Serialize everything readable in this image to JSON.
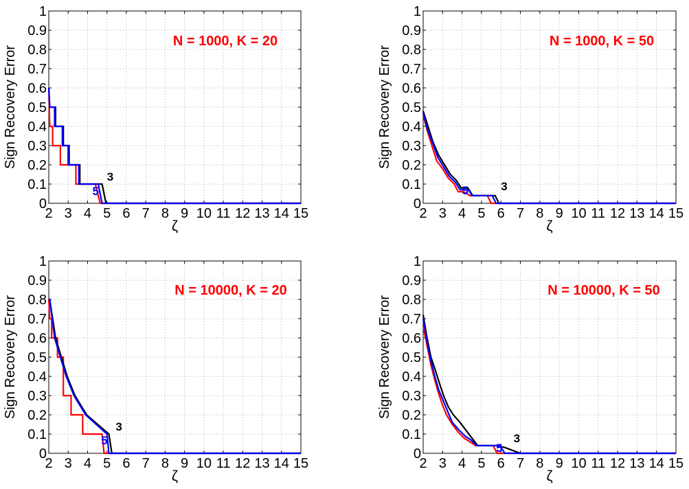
{
  "figure": {
    "colors": {
      "red": "#ff0000",
      "blue": "#0000ff",
      "black": "#000000",
      "grid": "#9a9a9a"
    }
  },
  "chart_data": [
    {
      "type": "line",
      "title": "N = 1000, K = 20",
      "xlabel": "ζ",
      "ylabel": "Sign Recovery Error",
      "xlim": [
        2,
        15
      ],
      "ylim": [
        0,
        1
      ],
      "xticks": [
        2,
        3,
        4,
        5,
        6,
        7,
        8,
        9,
        10,
        11,
        12,
        13,
        14,
        15
      ],
      "yticks": [
        0,
        0.1,
        0.2,
        0.3,
        0.4,
        0.5,
        0.6,
        0.7,
        0.8,
        0.9,
        1
      ],
      "grid": true,
      "annotations": [
        {
          "text": "3",
          "x": 5.0,
          "y": 0.11,
          "color": "black"
        },
        {
          "text": "5",
          "x": 4.25,
          "y": 0.035,
          "color": "blue"
        }
      ],
      "series": [
        {
          "color": "red",
          "x": [
            2,
            2.05,
            2.2,
            2.2,
            2.6,
            2.6,
            2.85,
            2.85,
            3.4,
            3.4,
            4.4,
            4.65,
            15
          ],
          "y": [
            0.6,
            0.4,
            0.4,
            0.3,
            0.3,
            0.2,
            0.2,
            0.2,
            0.2,
            0.1,
            0.1,
            0,
            0
          ]
        },
        {
          "color": "black",
          "x": [
            2,
            2.05,
            2.35,
            2.35,
            2.75,
            2.75,
            3.05,
            3.05,
            3.6,
            3.6,
            4.75,
            4.95,
            15
          ],
          "y": [
            0.6,
            0.5,
            0.5,
            0.4,
            0.4,
            0.3,
            0.3,
            0.2,
            0.2,
            0.1,
            0.1,
            0,
            0
          ]
        },
        {
          "color": "blue",
          "x": [
            2,
            2.05,
            2.3,
            2.3,
            2.7,
            2.7,
            3.0,
            3.0,
            3.55,
            3.55,
            4.55,
            4.75,
            15
          ],
          "y": [
            0.6,
            0.5,
            0.5,
            0.4,
            0.4,
            0.3,
            0.3,
            0.2,
            0.2,
            0.1,
            0.1,
            0,
            0
          ]
        }
      ]
    },
    {
      "type": "line",
      "title": "N = 1000, K = 50",
      "xlabel": "ζ",
      "ylabel": "Sign Recovery Error",
      "xlim": [
        2,
        15
      ],
      "ylim": [
        0,
        1
      ],
      "xticks": [
        2,
        3,
        4,
        5,
        6,
        7,
        8,
        9,
        10,
        11,
        12,
        13,
        14,
        15
      ],
      "yticks": [
        0,
        0.1,
        0.2,
        0.3,
        0.4,
        0.5,
        0.6,
        0.7,
        0.8,
        0.9,
        1
      ],
      "grid": true,
      "annotations": [
        {
          "text": "3",
          "x": 6.0,
          "y": 0.06,
          "color": "black"
        },
        {
          "text": "5",
          "x": 4.0,
          "y": 0.04,
          "color": "blue"
        }
      ],
      "series": [
        {
          "color": "red",
          "x": [
            2,
            2.2,
            2.45,
            2.7,
            3.0,
            3.3,
            3.6,
            3.8,
            4.1,
            4.4,
            5.3,
            5.5,
            15
          ],
          "y": [
            0.46,
            0.38,
            0.3,
            0.22,
            0.18,
            0.13,
            0.1,
            0.06,
            0.06,
            0.04,
            0.04,
            0,
            0
          ]
        },
        {
          "color": "black",
          "x": [
            2,
            2.25,
            2.5,
            2.8,
            3.1,
            3.4,
            3.7,
            3.95,
            4.3,
            4.55,
            5.7,
            5.9,
            15
          ],
          "y": [
            0.48,
            0.4,
            0.32,
            0.25,
            0.2,
            0.15,
            0.12,
            0.08,
            0.08,
            0.04,
            0.04,
            0,
            0
          ]
        },
        {
          "color": "blue",
          "x": [
            2,
            2.2,
            2.5,
            2.75,
            3.05,
            3.35,
            3.65,
            3.9,
            4.35,
            4.5,
            5.55,
            5.75,
            15
          ],
          "y": [
            0.47,
            0.39,
            0.31,
            0.24,
            0.19,
            0.14,
            0.11,
            0.07,
            0.07,
            0.04,
            0.04,
            0,
            0
          ]
        }
      ]
    },
    {
      "type": "line",
      "title": "N = 10000, K = 20",
      "xlabel": "ζ",
      "ylabel": "Sign Recovery Error",
      "xlim": [
        2,
        15
      ],
      "ylim": [
        0,
        1
      ],
      "xticks": [
        2,
        3,
        4,
        5,
        6,
        7,
        8,
        9,
        10,
        11,
        12,
        13,
        14,
        15
      ],
      "yticks": [
        0,
        0.1,
        0.2,
        0.3,
        0.4,
        0.5,
        0.6,
        0.7,
        0.8,
        0.9,
        1
      ],
      "grid": true,
      "annotations": [
        {
          "text": "3",
          "x": 5.45,
          "y": 0.11,
          "color": "black"
        },
        {
          "text": "5",
          "x": 4.7,
          "y": 0.04,
          "color": "blue"
        }
      ],
      "series": [
        {
          "color": "red",
          "x": [
            2,
            2.05,
            2.15,
            2.15,
            2.45,
            2.45,
            2.75,
            2.75,
            3.15,
            3.15,
            3.75,
            3.75,
            4.75,
            4.85,
            15
          ],
          "y": [
            0.8,
            0.7,
            0.7,
            0.6,
            0.6,
            0.5,
            0.5,
            0.3,
            0.3,
            0.2,
            0.2,
            0.1,
            0.1,
            0,
            0
          ]
        },
        {
          "color": "black",
          "x": [
            2,
            2.05,
            2.35,
            2.35,
            2.65,
            2.65,
            2.95,
            2.95,
            3.35,
            3.35,
            3.95,
            3.95,
            5.1,
            5.25,
            15
          ],
          "y": [
            0.8,
            0.8,
            0.6,
            0.6,
            0.5,
            0.5,
            0.4,
            0.4,
            0.3,
            0.3,
            0.2,
            0.2,
            0.1,
            0,
            0
          ]
        },
        {
          "color": "blue",
          "x": [
            2,
            2.05,
            2.3,
            2.3,
            2.6,
            2.6,
            2.9,
            2.9,
            3.3,
            3.3,
            3.9,
            3.9,
            5.0,
            5.1,
            15
          ],
          "y": [
            0.8,
            0.8,
            0.6,
            0.6,
            0.5,
            0.5,
            0.4,
            0.4,
            0.3,
            0.3,
            0.2,
            0.2,
            0.1,
            0,
            0
          ]
        }
      ]
    },
    {
      "type": "line",
      "title": "N = 10000, K = 50",
      "xlabel": "ζ",
      "ylabel": "Sign Recovery Error",
      "xlim": [
        2,
        15
      ],
      "ylim": [
        0,
        1
      ],
      "xticks": [
        2,
        3,
        4,
        5,
        6,
        7,
        8,
        9,
        10,
        11,
        12,
        13,
        14,
        15
      ],
      "yticks": [
        0,
        0.1,
        0.2,
        0.3,
        0.4,
        0.5,
        0.6,
        0.7,
        0.8,
        0.9,
        1
      ],
      "grid": true,
      "annotations": [
        {
          "text": "3",
          "x": 6.65,
          "y": 0.05,
          "color": "black"
        },
        {
          "text": "5",
          "x": 5.75,
          "y": 0.0,
          "color": "blue"
        }
      ],
      "series": [
        {
          "color": "red",
          "x": [
            2,
            2.2,
            2.4,
            2.6,
            2.8,
            3.0,
            3.2,
            3.5,
            3.8,
            4.1,
            4.4,
            4.7,
            5.0,
            5.6,
            5.8,
            15
          ],
          "y": [
            0.66,
            0.56,
            0.46,
            0.38,
            0.31,
            0.25,
            0.2,
            0.15,
            0.11,
            0.08,
            0.06,
            0.04,
            0.04,
            0.04,
            0,
            0
          ]
        },
        {
          "color": "black",
          "x": [
            2,
            2.2,
            2.4,
            2.6,
            2.85,
            3.05,
            3.3,
            3.55,
            3.9,
            4.2,
            4.5,
            4.8,
            5.1,
            5.8,
            6.2,
            7.0,
            15
          ],
          "y": [
            0.72,
            0.6,
            0.5,
            0.44,
            0.36,
            0.3,
            0.24,
            0.2,
            0.16,
            0.12,
            0.08,
            0.04,
            0.04,
            0.04,
            0.03,
            0,
            0
          ]
        },
        {
          "color": "blue",
          "x": [
            2,
            2.2,
            2.4,
            2.6,
            2.8,
            3.05,
            3.25,
            3.5,
            3.85,
            4.15,
            4.45,
            4.75,
            5.05,
            5.95,
            6.2,
            15
          ],
          "y": [
            0.7,
            0.58,
            0.48,
            0.4,
            0.33,
            0.27,
            0.22,
            0.16,
            0.12,
            0.09,
            0.07,
            0.04,
            0.04,
            0.04,
            0,
            0
          ]
        }
      ]
    }
  ]
}
